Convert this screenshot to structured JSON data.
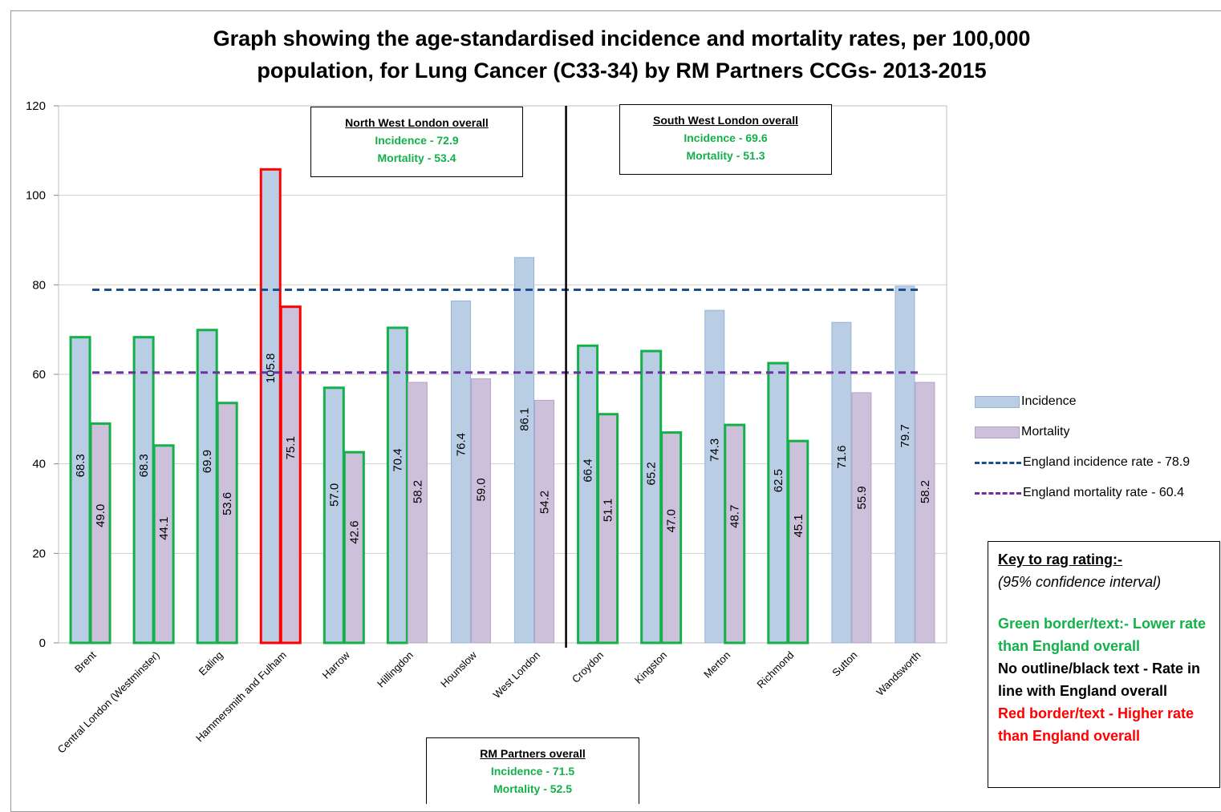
{
  "chart_data": {
    "type": "bar",
    "title_line1": "Graph showing the age-standardised incidence and mortality rates, per 100,000",
    "title_line2": "population, for Lung Cancer (C33-34) by RM Partners  CCGs- 2013-2015",
    "categories": [
      "Brent",
      "Central London (Westminster)",
      "Ealing",
      "Hammersmith and Fulham",
      "Harrow",
      "Hillingdon",
      "Hounslow",
      "West London",
      "Croydon",
      "Kingston",
      "Merton",
      "Richmond",
      "Sutton",
      "Wandsworth"
    ],
    "series": [
      {
        "name": "Incidence",
        "color": "#b9cde5",
        "values": [
          68.3,
          68.3,
          69.9,
          105.8,
          57.0,
          70.4,
          76.4,
          86.1,
          66.4,
          65.2,
          74.3,
          62.5,
          71.6,
          79.7
        ]
      },
      {
        "name": "Mortality",
        "color": "#ccc0da",
        "values": [
          49.0,
          44.1,
          53.6,
          75.1,
          42.6,
          58.2,
          59.0,
          54.2,
          51.1,
          47.0,
          48.7,
          45.1,
          55.9,
          58.2
        ]
      }
    ],
    "value_labels": {
      "incidence": [
        "68.3",
        "68.3",
        "69.9",
        "105.8",
        "57.0",
        "70.4",
        "76.4",
        "86.1",
        "66.4",
        "65.2",
        "74.3",
        "62.5",
        "71.6",
        "79.7"
      ],
      "mortality": [
        "49.0",
        "44.1",
        "53.6",
        "75.1",
        "42.6",
        "58.2",
        "59.0",
        "54.2",
        "51.1",
        "47.0",
        "48.7",
        "45.1",
        "55.9",
        "58.2"
      ]
    },
    "rag_incidence": [
      "green",
      "green",
      "green",
      "red",
      "green",
      "green",
      "none",
      "none",
      "green",
      "green",
      "none",
      "green",
      "none",
      "none"
    ],
    "rag_mortality": [
      "green",
      "green",
      "green",
      "red",
      "green",
      "none",
      "none",
      "none",
      "green",
      "green",
      "green",
      "green",
      "none",
      "none"
    ],
    "reference_lines": [
      {
        "name": "England incidence rate - 78.9",
        "value": 78.9,
        "color": "#1f4e8c"
      },
      {
        "name": "England mortality rate - 60.4",
        "value": 60.4,
        "color": "#7030a0"
      }
    ],
    "ylim": [
      0,
      120
    ],
    "yticks": [
      "0",
      "20",
      "40",
      "60",
      "80",
      "100",
      "120"
    ],
    "grid": true,
    "legend_position": "right",
    "divider_after_category": 7
  },
  "colors": {
    "green_border": "#14b04a",
    "red_border": "#ff0000"
  },
  "regions": {
    "nw": {
      "heading": "North West London overall",
      "incidence": "Incidence - 72.9",
      "mortality": "Mortality - 53.4"
    },
    "sw": {
      "heading": "South West London overall",
      "incidence": "Incidence - 69.6",
      "mortality": "Mortality - 51.3"
    },
    "rm": {
      "heading": "RM Partners overall",
      "incidence": "Incidence - 71.5",
      "mortality": "Mortality - 52.5"
    }
  },
  "legend": {
    "incidence": "Incidence",
    "mortality": "Mortality",
    "england_incidence": "England incidence rate - 78.9",
    "england_mortality": "England mortality rate - 60.4"
  },
  "key": {
    "title": "Key to rag rating:-",
    "subtitle": "(95% confidence interval)",
    "green": "Green border/text:- Lower rate than England overall",
    "black": "No outline/black text - Rate in line with England overall",
    "red": "Red border/text - Higher rate than England overall"
  }
}
